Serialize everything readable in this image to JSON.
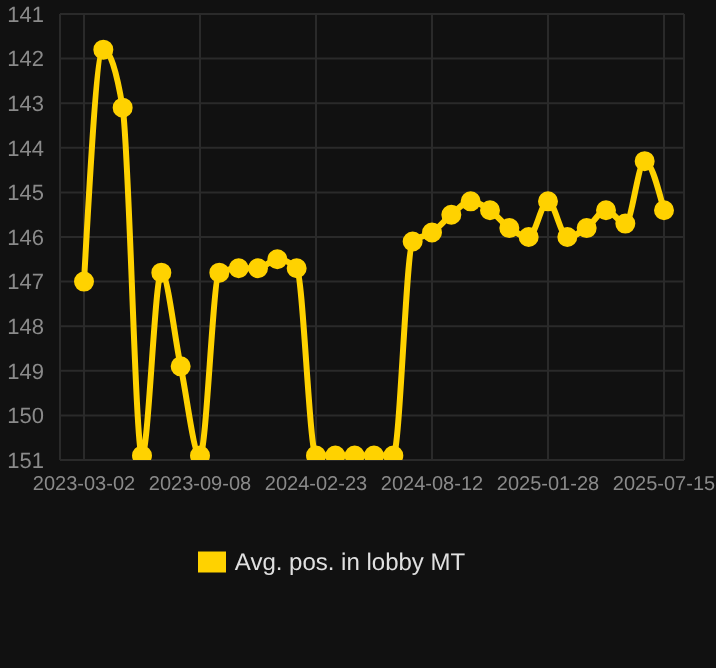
{
  "chart_data": {
    "type": "line",
    "categories": [
      "2023-03-02",
      null,
      null,
      null,
      null,
      null,
      "2023-09-08",
      null,
      null,
      null,
      null,
      null,
      "2024-02-23",
      null,
      null,
      null,
      null,
      null,
      "2024-08-12",
      null,
      null,
      null,
      null,
      null,
      "2025-01-28",
      null,
      null,
      null,
      null,
      null,
      "2025-07-15"
    ],
    "series": [
      {
        "name": "Avg. pos. in lobby MT",
        "color": "#ffd200",
        "values": [
          147.0,
          141.8,
          143.1,
          150.9,
          146.8,
          148.9,
          150.9,
          146.8,
          146.7,
          146.7,
          146.5,
          146.7,
          150.9,
          150.9,
          150.9,
          150.9,
          150.9,
          146.1,
          145.9,
          145.5,
          145.2,
          145.4,
          145.8,
          146.0,
          145.2,
          146.0,
          145.8,
          145.4,
          145.7,
          144.3,
          145.4
        ]
      }
    ],
    "ylim": [
      151,
      141
    ],
    "yticks": [
      141,
      142,
      143,
      144,
      145,
      146,
      147,
      148,
      149,
      150,
      151
    ],
    "grid": true,
    "legend": "bottom",
    "marker": "circle",
    "line_style": "solid"
  }
}
